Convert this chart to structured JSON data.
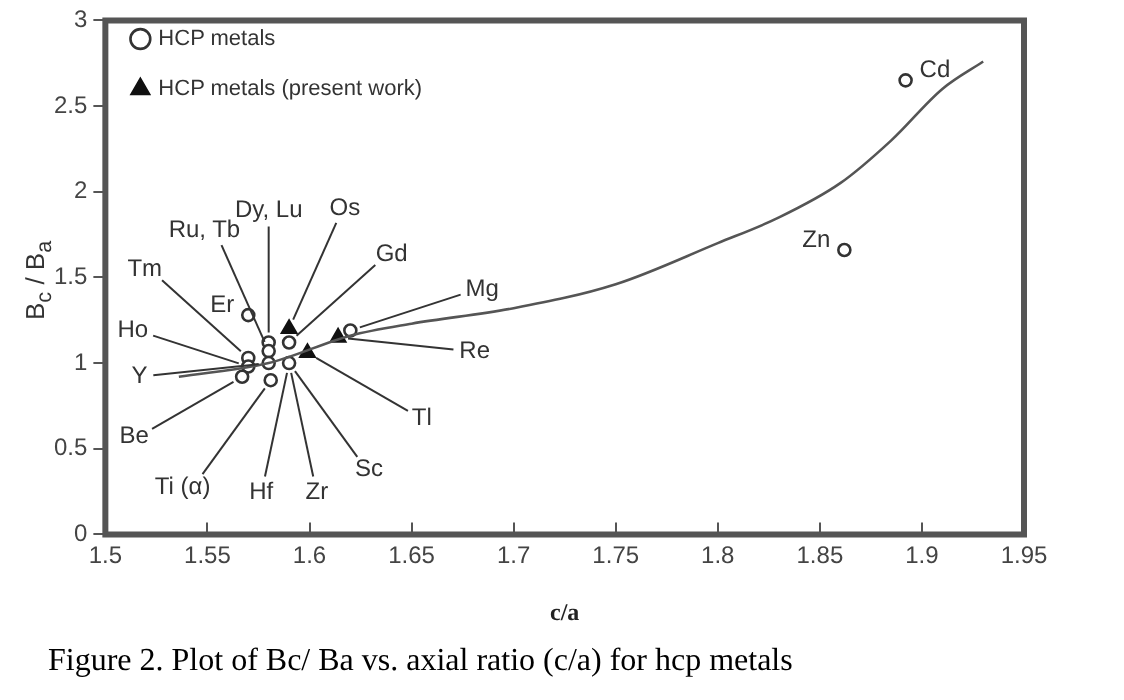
{
  "chart_data": {
    "type": "scatter",
    "title": "Figure 2. Plot of Bc/ Ba vs. axial ratio (c/a) for hcp metals",
    "xlabel": "c/a",
    "ylabel": "B$_{c}$ / B$_{a}$",
    "xlim": [
      1.5,
      1.95
    ],
    "xticks": [
      1.5,
      1.55,
      1.6,
      1.65,
      1.7,
      1.75,
      1.8,
      1.85,
      1.9,
      1.95
    ],
    "ylim": [
      0,
      3
    ],
    "yticks": [
      0,
      0.5,
      1,
      1.5,
      2,
      2.5,
      3
    ],
    "grid": false,
    "legend": "top left",
    "series": [
      {
        "type": "line",
        "color": "#555555",
        "marker": "none",
        "x": [
          1.536,
          1.58,
          1.62,
          1.65,
          1.7,
          1.75,
          1.8,
          1.83,
          1.86,
          1.885,
          1.91,
          1.93
        ],
        "values": [
          0.92,
          1.0,
          1.16,
          1.23,
          1.32,
          1.46,
          1.7,
          1.85,
          2.05,
          2.3,
          2.6,
          2.76
        ]
      },
      {
        "type": "scatter",
        "name": "HCP metals",
        "color": "#333333",
        "marker": "circle",
        "x": [
          1.57,
          1.58,
          1.58,
          1.57,
          1.57,
          1.567,
          1.58,
          1.59,
          1.581,
          1.59,
          1.62,
          1.862,
          1.892
        ],
        "values": [
          1.28,
          1.12,
          1.07,
          1.03,
          0.98,
          0.92,
          1.0,
          1.12,
          0.9,
          1.0,
          1.19,
          1.66,
          2.65
        ]
      },
      {
        "type": "scatter",
        "name": "HCP metals (present work)",
        "color": "#111111",
        "marker": "triangle",
        "x": [
          1.59,
          1.614,
          1.599
        ],
        "values": [
          1.2,
          1.15,
          1.06
        ]
      }
    ],
    "annotations": [
      {
        "text": "Dy, Lu",
        "x": 1.58,
        "y": 1.12
      },
      {
        "text": "Os",
        "x": 1.59,
        "y": 1.2
      },
      {
        "text": "Gd",
        "x": 1.59,
        "y": 1.12
      },
      {
        "text": "Mg",
        "x": 1.62,
        "y": 1.19
      },
      {
        "text": "Re",
        "x": 1.614,
        "y": 1.15
      },
      {
        "text": "Tl",
        "x": 1.599,
        "y": 1.06
      },
      {
        "text": "Sc",
        "x": 1.59,
        "y": 1.0
      },
      {
        "text": "Zr",
        "x": 1.59,
        "y": 1.0
      },
      {
        "text": "Hf",
        "x": 1.59,
        "y": 1.0
      },
      {
        "text": "Ti (α)",
        "x": 1.581,
        "y": 0.9
      },
      {
        "text": "Be",
        "x": 1.567,
        "y": 0.92
      },
      {
        "text": "Y",
        "x": 1.58,
        "y": 1.0
      },
      {
        "text": "Ho",
        "x": 1.57,
        "y": 0.98
      },
      {
        "text": "Tm",
        "x": 1.57,
        "y": 1.03
      },
      {
        "text": "Ru, Tb",
        "x": 1.58,
        "y": 1.07
      },
      {
        "text": "Er",
        "x": 1.57,
        "y": 1.28
      },
      {
        "text": "Zn",
        "x": 1.862,
        "y": 1.66
      },
      {
        "text": "Cd",
        "x": 1.892,
        "y": 2.65
      }
    ]
  }
}
